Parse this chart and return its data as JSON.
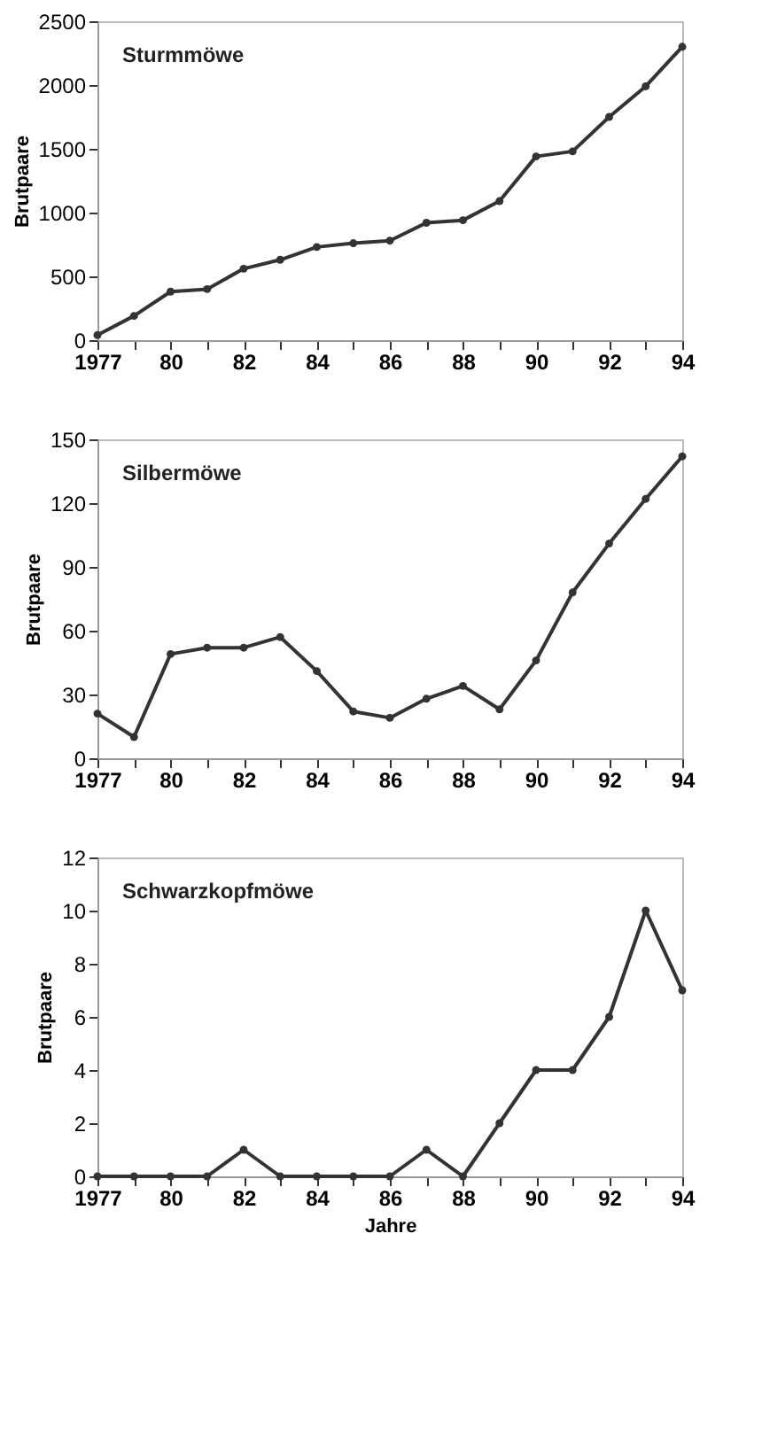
{
  "chart_data": [
    {
      "type": "line",
      "title": "Sturmmöwe",
      "ylabel": "Brutpaare",
      "categories": [
        "1977",
        null,
        "80",
        null,
        "82",
        null,
        "84",
        null,
        "86",
        null,
        "88",
        null,
        "90",
        null,
        "92",
        null,
        "94"
      ],
      "series": [
        {
          "color": "#333333",
          "values": [
            40,
            190,
            380,
            400,
            560,
            630,
            730,
            760,
            780,
            920,
            940,
            1090,
            1440,
            1480,
            1750,
            1990,
            2300
          ]
        }
      ],
      "ylim": [
        0,
        2500
      ],
      "yticks": [
        0,
        500,
        1000,
        1500,
        2000,
        2500
      ],
      "marker": "circle",
      "line_style": "solid"
    },
    {
      "type": "line",
      "title": "Silbermöwe",
      "ylabel": "Brutpaare",
      "categories": [
        "1977",
        null,
        "80",
        null,
        "82",
        null,
        "84",
        null,
        "86",
        null,
        "88",
        null,
        "90",
        null,
        "92",
        null,
        "94"
      ],
      "series": [
        {
          "color": "#333333",
          "values": [
            21,
            10,
            49,
            52,
            52,
            57,
            41,
            22,
            19,
            28,
            34,
            23,
            46,
            78,
            101,
            122,
            142
          ]
        }
      ],
      "ylim": [
        0,
        150
      ],
      "yticks": [
        0,
        30,
        60,
        90,
        120,
        150
      ],
      "marker": "circle",
      "line_style": "solid"
    },
    {
      "type": "line",
      "title": "Schwarzkopfmöwe",
      "ylabel": "Brutpaare",
      "xlabel": "Jahre",
      "categories": [
        "1977",
        null,
        "80",
        null,
        "82",
        null,
        "84",
        null,
        "86",
        null,
        "88",
        null,
        "90",
        null,
        "92",
        null,
        "94"
      ],
      "series": [
        {
          "color": "#333333",
          "values": [
            0,
            0,
            0,
            0,
            1,
            0,
            0,
            0,
            0,
            1,
            0,
            2,
            4,
            4,
            6,
            10,
            7
          ]
        }
      ],
      "ylim": [
        0,
        12
      ],
      "yticks": [
        0,
        2,
        4,
        6,
        8,
        10,
        12
      ],
      "marker": "circle",
      "line_style": "solid"
    }
  ]
}
